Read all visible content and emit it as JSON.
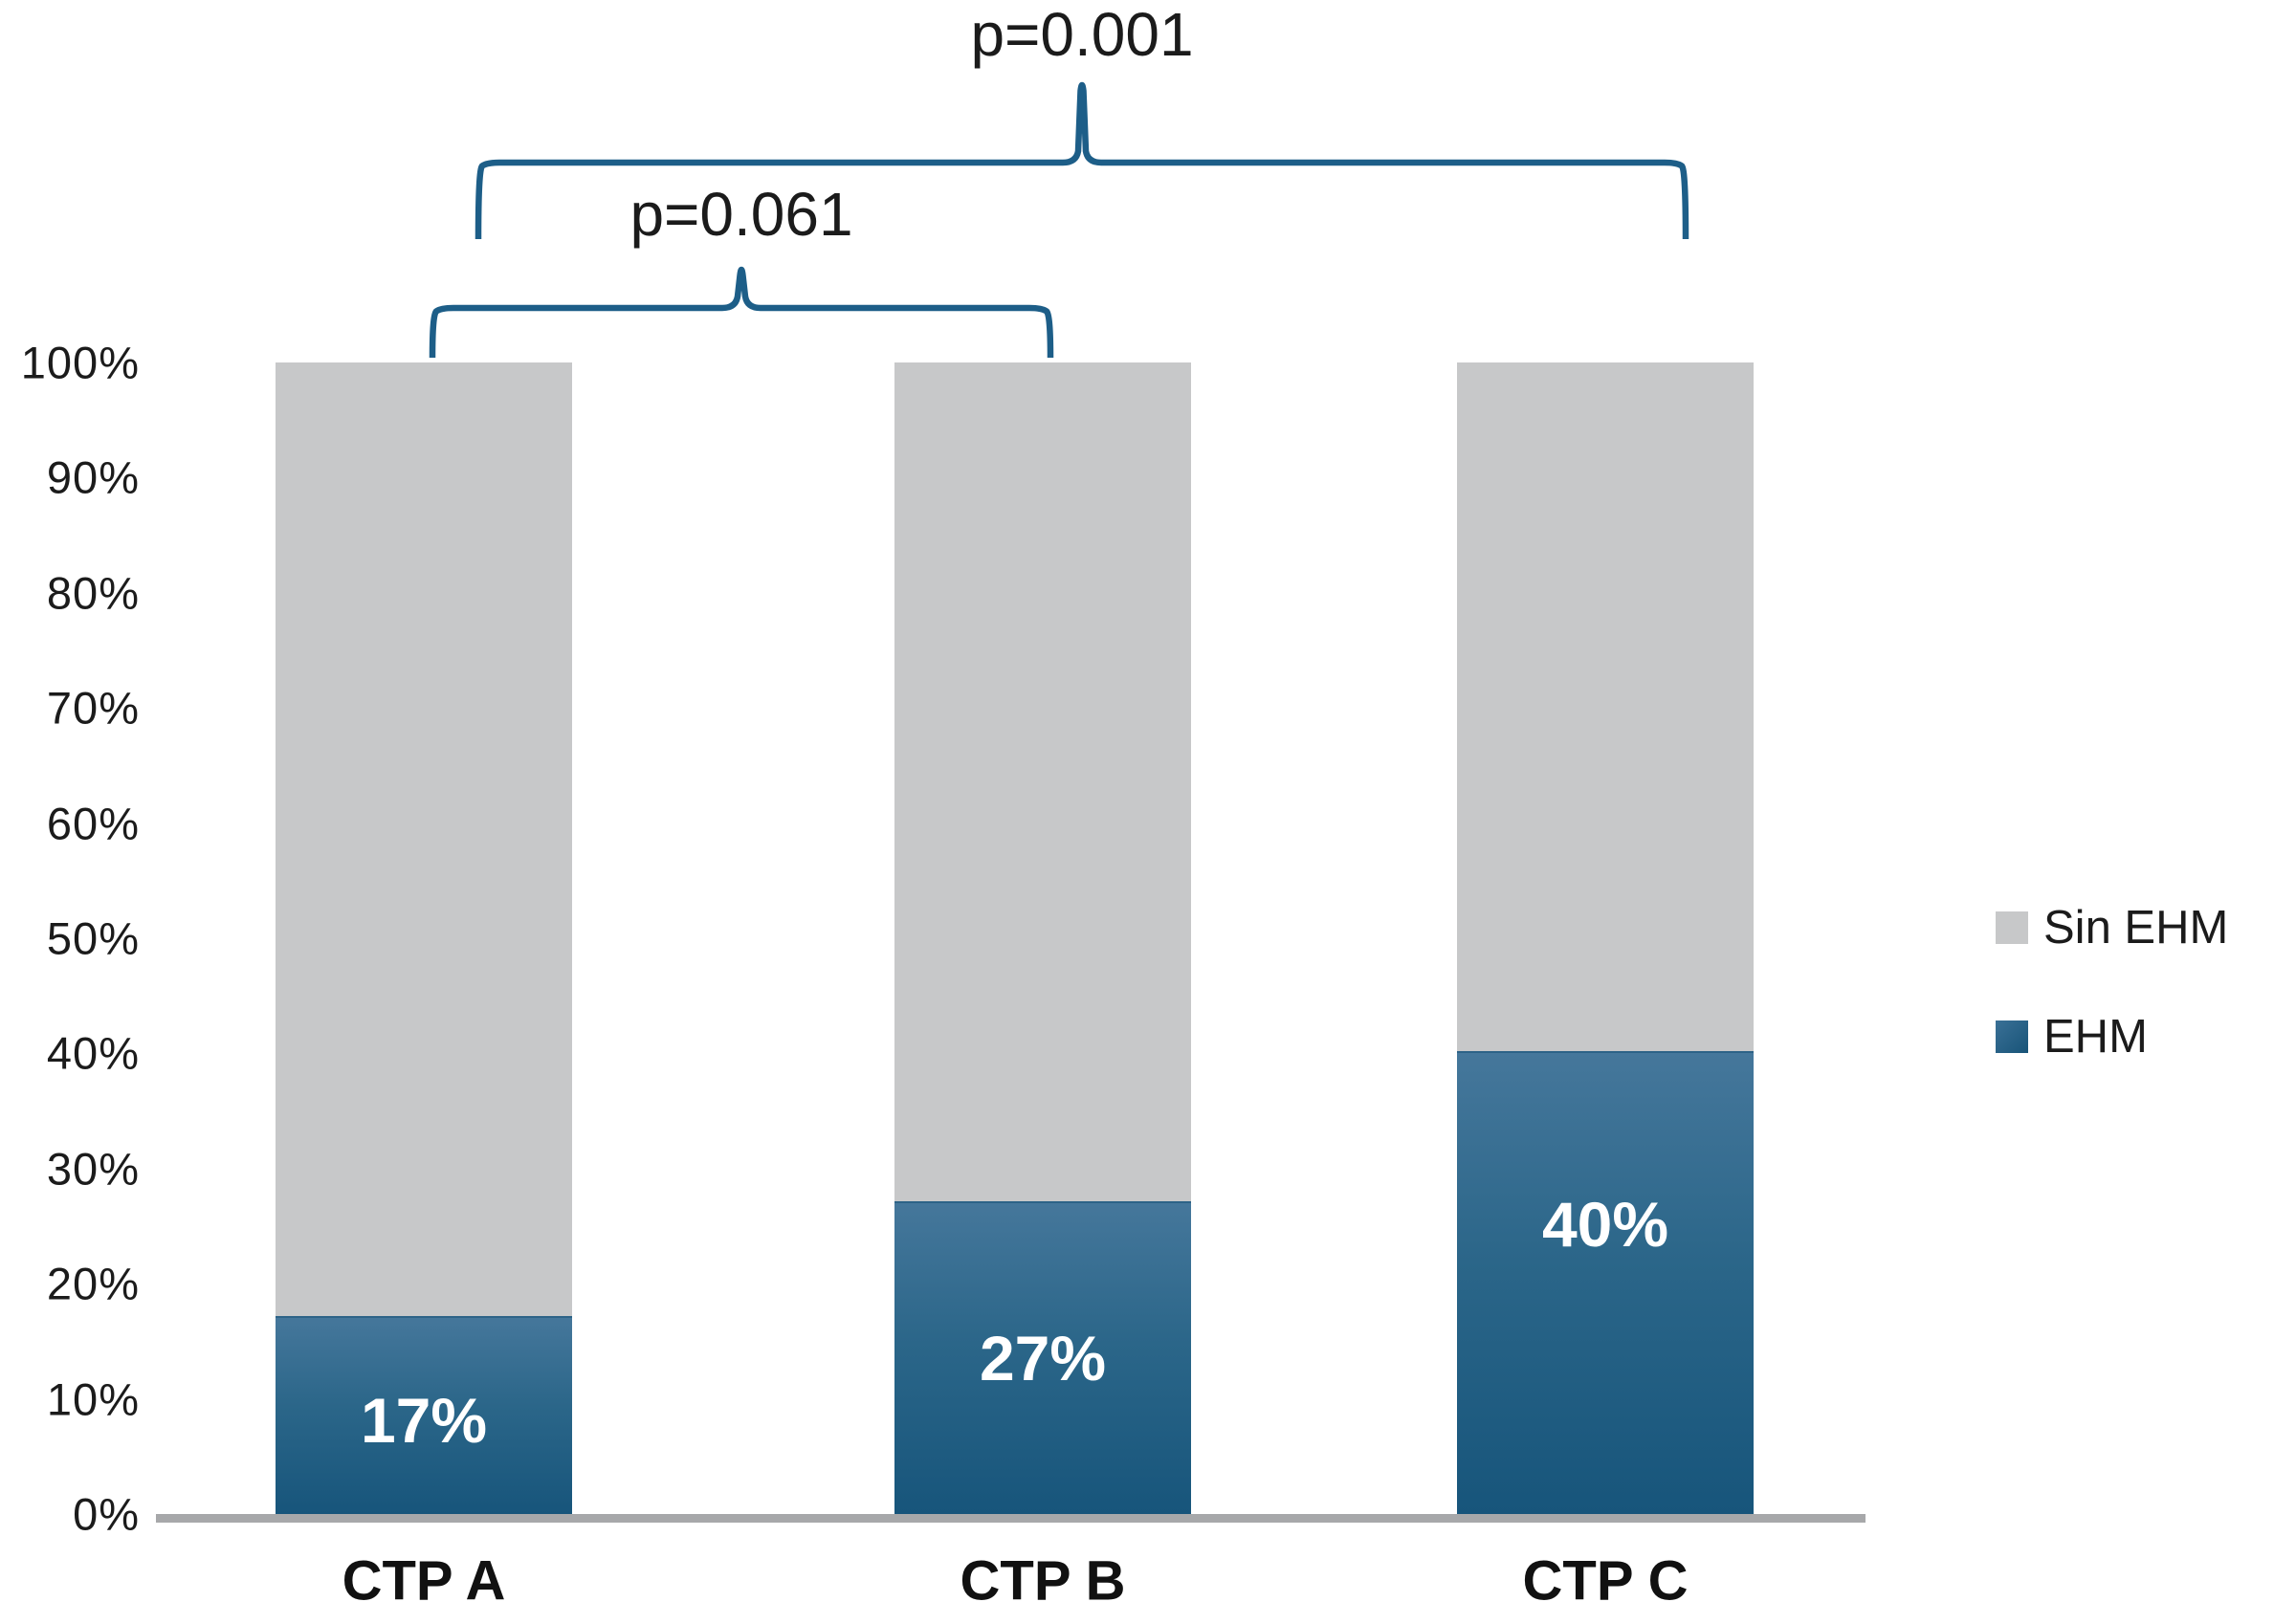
{
  "chart_data": {
    "type": "bar",
    "stacked": true,
    "title": "",
    "xlabel": "",
    "ylabel": "",
    "ylim": [
      0,
      100
    ],
    "grid": false,
    "categories": [
      "CTP A",
      "CTP B",
      "CTP C"
    ],
    "yticks": [
      "0%",
      "10%",
      "20%",
      "30%",
      "40%",
      "50%",
      "60%",
      "70%",
      "80%",
      "90%",
      "100%"
    ],
    "series": [
      {
        "name": "EHM",
        "values": [
          17,
          27,
          40
        ],
        "value_labels": [
          "17%",
          "27%",
          "40%"
        ],
        "color": "#1f5c82"
      },
      {
        "name": "Sin EHM",
        "values": [
          83,
          73,
          60
        ],
        "value_labels": [
          "",
          "",
          ""
        ],
        "color": "#c7c8c9"
      }
    ],
    "legend_position": "right",
    "annotations": [
      {
        "label": "p=0.001",
        "from": "CTP A",
        "to": "CTP C"
      },
      {
        "label": "p=0.061",
        "from": "CTP A",
        "to": "CTP B"
      }
    ]
  },
  "legend": {
    "items": [
      {
        "label": "Sin EHM",
        "color": "#c7c8c9"
      },
      {
        "label": "EHM",
        "color": "#1f5c82"
      }
    ]
  },
  "colors": {
    "bar_blue_top": "#45779b",
    "bar_blue_bottom": "#17557b",
    "bar_gray": "#c7c8c9",
    "bracket": "#1d5e88",
    "axis_line": "#a7a8aa",
    "text": "#1b1b1b",
    "value_text": "#ffffff"
  }
}
